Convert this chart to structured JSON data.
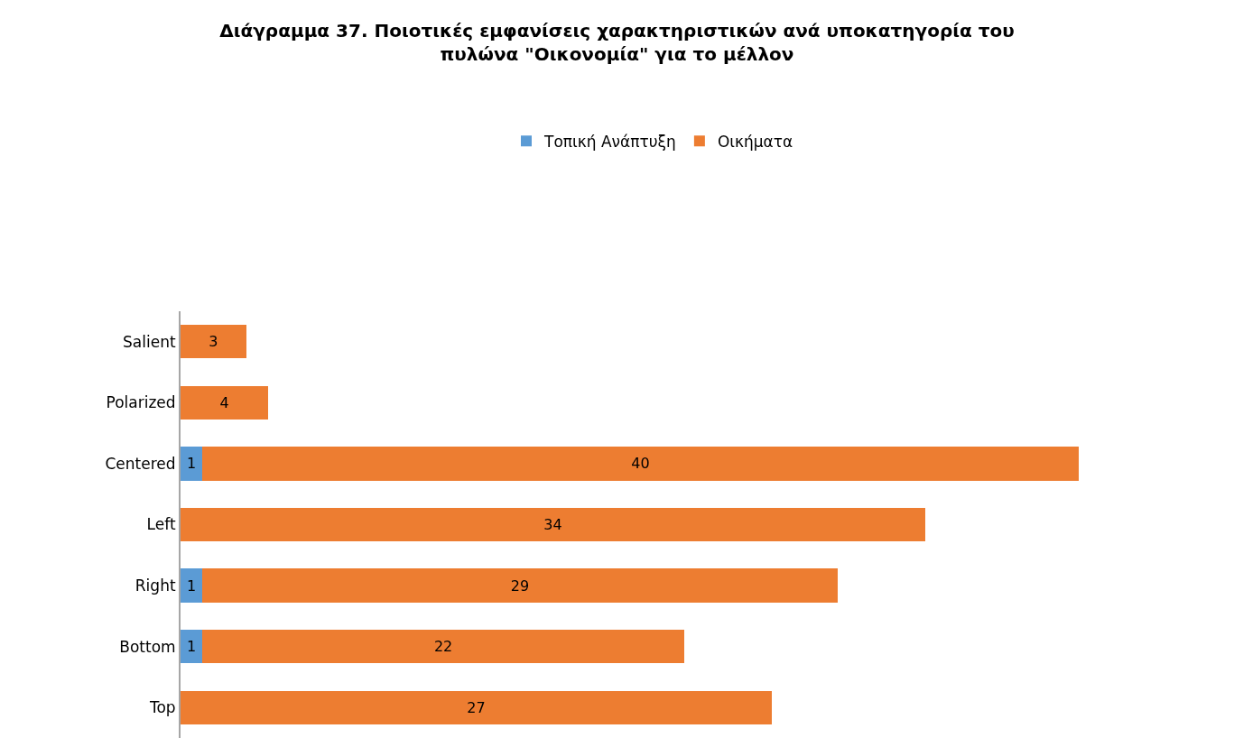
{
  "chart_data": {
    "type": "bar",
    "orientation": "horizontal",
    "stacked": true,
    "data_labels": true,
    "legend": "top",
    "title": "Διάγραμμα 37. Ποιοτικές εμφανίσεις χαρακτηριστικών ανά υποκατηγορία του πυλώνα \"Οικονομία\" για το μέλλον",
    "categories": [
      "Salient",
      "Polarized",
      "Centered",
      "Left",
      "Right",
      "Bottom",
      "Top"
    ],
    "series": [
      {
        "name": "Τοπική Ανάπτυξη",
        "color": "#5b9bd5",
        "values": [
          null,
          null,
          1,
          null,
          1,
          1,
          null
        ]
      },
      {
        "name": "Οικήματα",
        "color": "#ed7d31",
        "values": [
          3,
          4,
          40,
          34,
          29,
          22,
          27
        ]
      }
    ]
  }
}
